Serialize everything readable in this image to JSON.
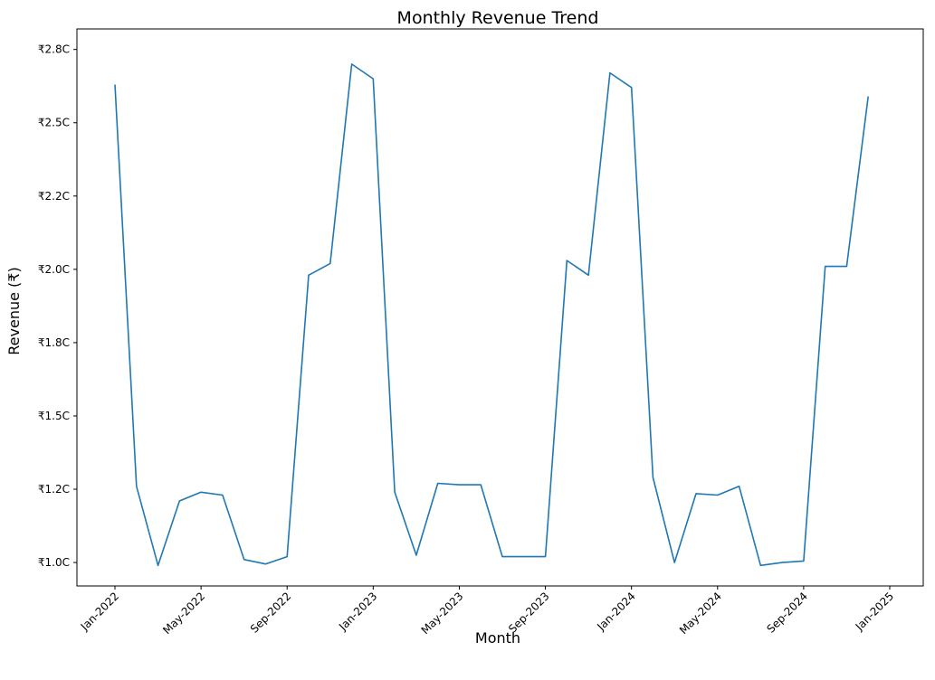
{
  "chart_data": {
    "type": "line",
    "title": "Monthly Revenue Trend",
    "xlabel": "Month",
    "ylabel": "Revenue (₹)",
    "grid": false,
    "legend": "none",
    "x_ticks": [
      "Jan-2022",
      "May-2022",
      "Sep-2022",
      "Jan-2023",
      "May-2023",
      "Sep-2023",
      "Jan-2024",
      "May-2024",
      "Sep-2024",
      "Jan-2025"
    ],
    "y_ticks": [
      "₹1.0C",
      "₹1.2C",
      "₹1.5C",
      "₹1.8C",
      "₹2.0C",
      "₹2.2C",
      "₹2.5C",
      "₹2.8C"
    ],
    "ylim": [
      0.92,
      2.82
    ],
    "series": [
      {
        "color": "#1f77b4",
        "x": [
          "2022-01",
          "2022-02",
          "2022-03",
          "2022-04",
          "2022-05",
          "2022-06",
          "2022-07",
          "2022-08",
          "2022-09",
          "2022-10",
          "2022-11",
          "2022-12",
          "2023-01",
          "2023-02",
          "2023-03",
          "2023-04",
          "2023-05",
          "2023-06",
          "2023-07",
          "2023-08",
          "2023-09",
          "2023-10",
          "2023-11",
          "2023-12",
          "2024-01",
          "2024-02",
          "2024-03",
          "2024-04",
          "2024-05",
          "2024-06",
          "2024-07",
          "2024-08",
          "2024-09",
          "2024-10",
          "2024-11",
          "2024-12"
        ],
        "values": [
          2.63,
          1.26,
          0.99,
          1.21,
          1.24,
          1.23,
          1.01,
          0.995,
          1.02,
          1.98,
          2.02,
          2.7,
          2.65,
          1.24,
          1.025,
          1.27,
          1.265,
          1.265,
          1.02,
          1.02,
          1.02,
          2.03,
          1.98,
          2.67,
          2.62,
          1.29,
          1.0,
          1.235,
          1.23,
          1.26,
          0.99,
          1.0,
          1.005,
          2.01,
          2.01,
          2.59
        ]
      }
    ]
  }
}
